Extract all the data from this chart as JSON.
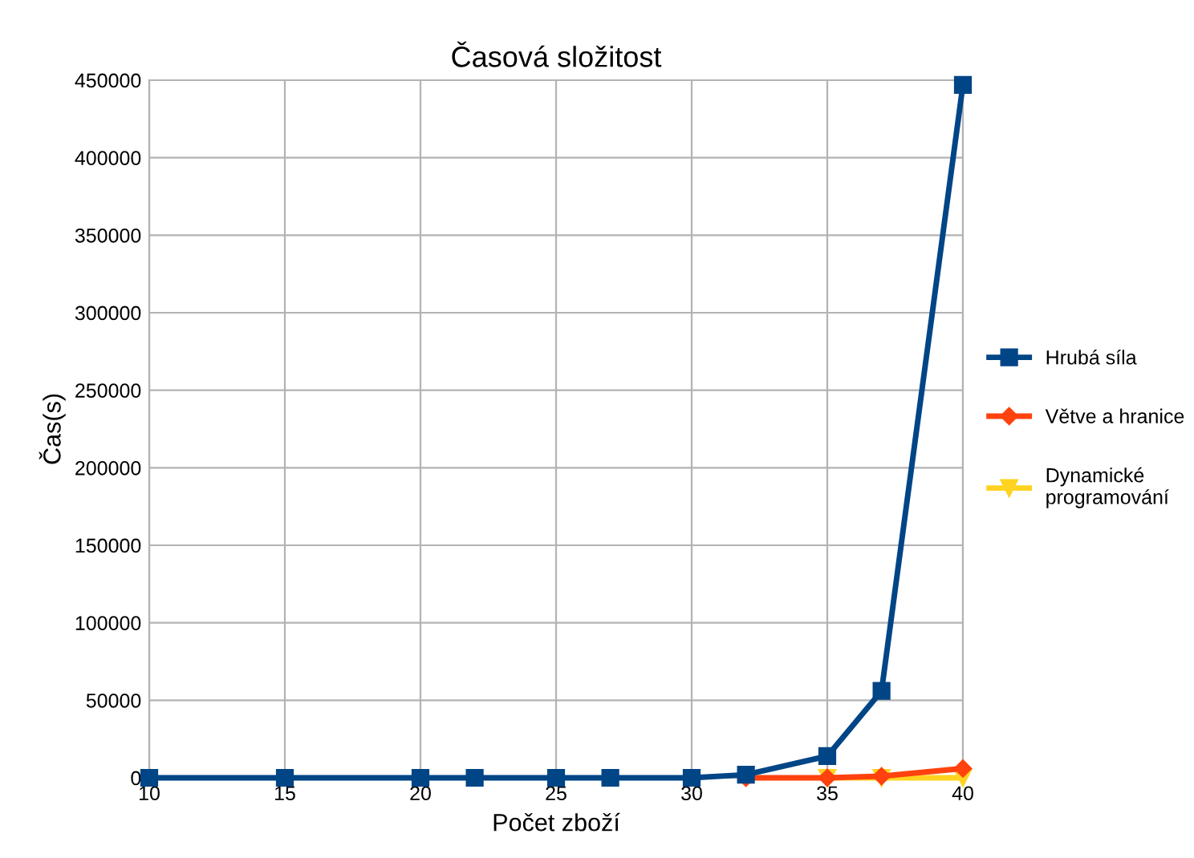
{
  "chart_data": {
    "type": "line",
    "title": "Časová složitost",
    "xlabel": "Počet zboží",
    "ylabel": "Čas(s)",
    "x": [
      10,
      15,
      20,
      22,
      25,
      27,
      30,
      32,
      35,
      37,
      40
    ],
    "series": [
      {
        "name": "Hrubá síla",
        "color": "#004586",
        "marker": "square",
        "values": [
          0,
          0,
          0,
          0,
          0,
          0,
          0,
          2000,
          14000,
          56000,
          447000
        ]
      },
      {
        "name": "Větve a hranice",
        "color": "#ff420e",
        "marker": "diamond",
        "values": [
          null,
          null,
          null,
          null,
          null,
          null,
          null,
          0,
          0,
          1000,
          6000
        ]
      },
      {
        "name": "Dynamické\nprogramování",
        "color": "#ffd320",
        "marker": "triangle",
        "values": [
          null,
          null,
          null,
          null,
          null,
          null,
          null,
          null,
          0,
          0,
          0
        ]
      }
    ],
    "xlim": [
      10,
      40
    ],
    "xticks": [
      10,
      15,
      20,
      25,
      30,
      35,
      40
    ],
    "ylim": [
      0,
      450000
    ],
    "yticks": [
      0,
      50000,
      100000,
      150000,
      200000,
      250000,
      300000,
      350000,
      400000,
      450000
    ],
    "grid": true,
    "legend": "right",
    "line_style": "solid"
  }
}
